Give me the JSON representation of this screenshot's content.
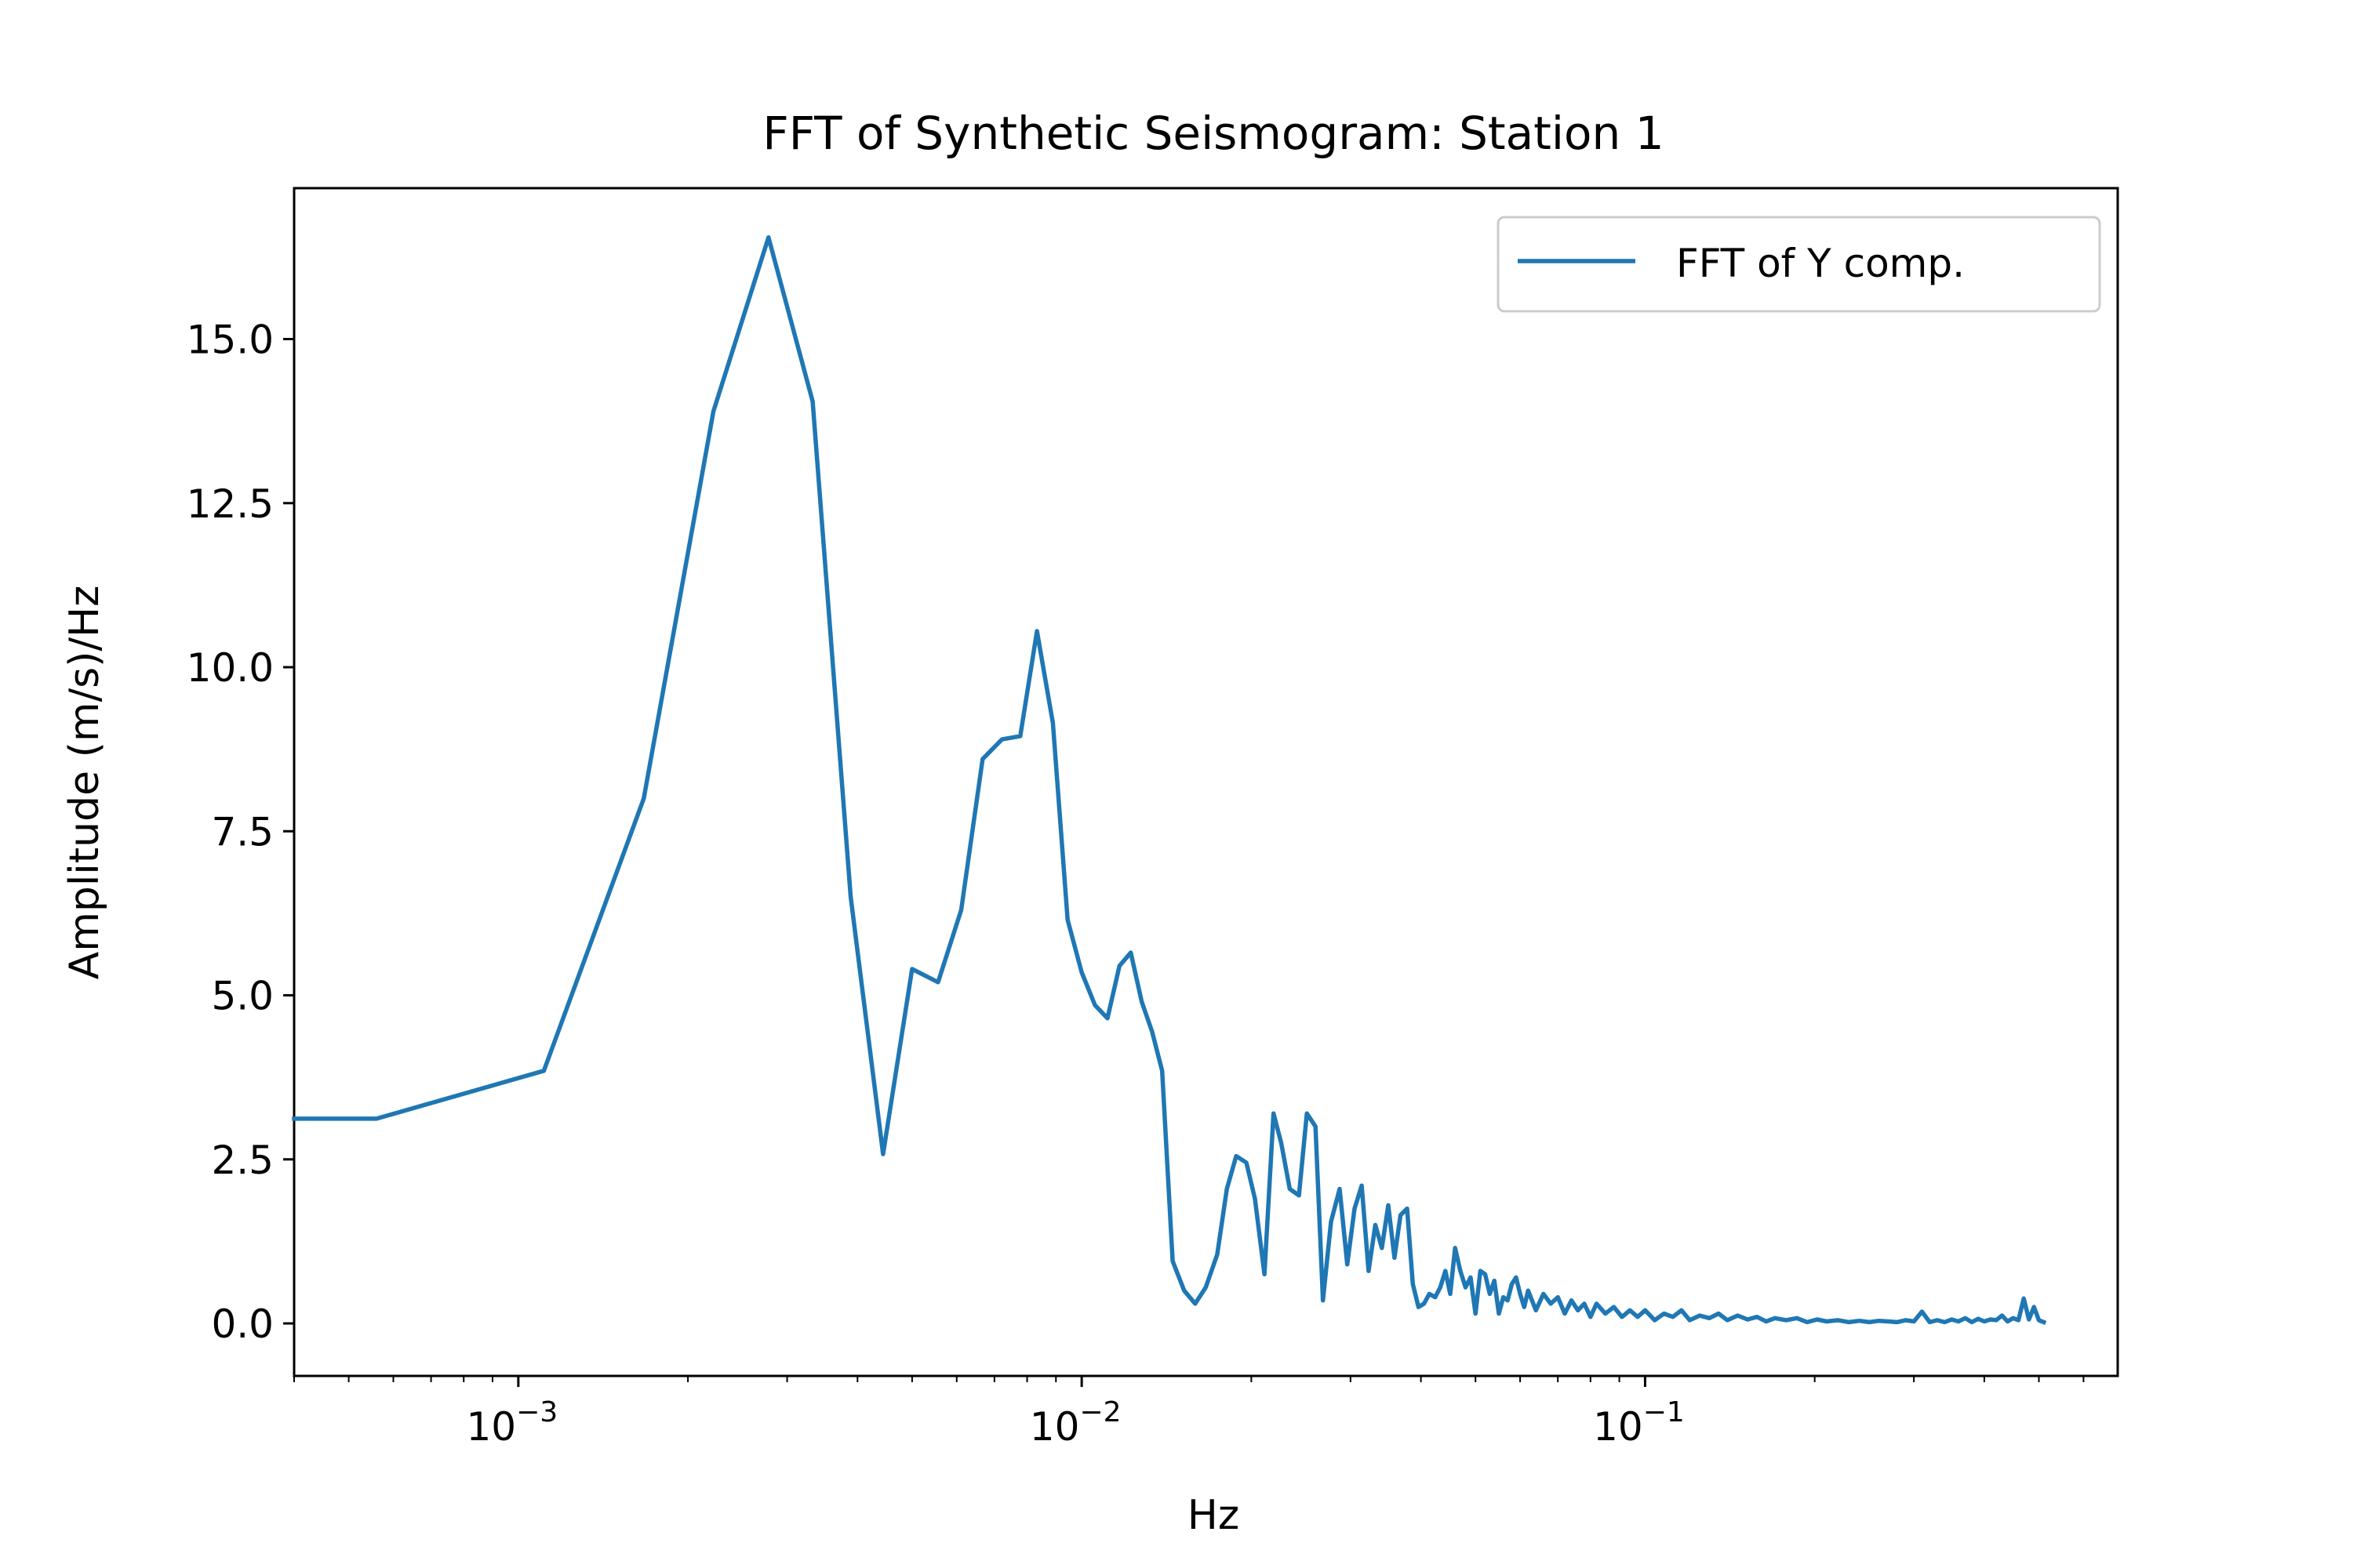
{
  "chart_data": {
    "type": "line",
    "title": "FFT of Synthetic Seismogram: Station 1",
    "xlabel": "Hz",
    "ylabel": "Amplitude (m/s)/Hz",
    "x_scale": "log",
    "xlim": [
      0.0004,
      0.69
    ],
    "ylim": [
      -0.8,
      17.3
    ],
    "x_major_ticks": [
      {
        "value": 0.001,
        "base": "10",
        "exponent": "−3"
      },
      {
        "value": 0.01,
        "base": "10",
        "exponent": "−2"
      },
      {
        "value": 0.1,
        "base": "10",
        "exponent": "−1"
      }
    ],
    "y_ticks": [
      {
        "value": 0.0,
        "label": "0.0"
      },
      {
        "value": 2.5,
        "label": "2.5"
      },
      {
        "value": 5.0,
        "label": "5.0"
      },
      {
        "value": 7.5,
        "label": "7.5"
      },
      {
        "value": 10.0,
        "label": "10.0"
      },
      {
        "value": 12.5,
        "label": "12.5"
      },
      {
        "value": 15.0,
        "label": "15.0"
      }
    ],
    "grid": false,
    "legend": {
      "placement": "upper right",
      "entries": [
        "FFT of Y comp."
      ]
    },
    "series": [
      {
        "name": "FFT of Y comp.",
        "color": "#1f77b4",
        "x": [
          0.0004,
          0.00056,
          0.00111,
          0.00167,
          0.00222,
          0.00278,
          0.00333,
          0.00389,
          0.00444,
          0.005,
          0.00556,
          0.00611,
          0.00667,
          0.00722,
          0.00778,
          0.00833,
          0.00889,
          0.00944,
          0.01,
          0.01056,
          0.01111,
          0.01167,
          0.01222,
          0.01278,
          0.01333,
          0.01389,
          0.0145,
          0.0152,
          0.0159,
          0.0166,
          0.0174,
          0.0181,
          0.0188,
          0.0196,
          0.0203,
          0.0211,
          0.0219,
          0.0226,
          0.0234,
          0.0243,
          0.0251,
          0.026,
          0.0268,
          0.0277,
          0.0287,
          0.0296,
          0.0305,
          0.0314,
          0.0323,
          0.0332,
          0.0341,
          0.035,
          0.0359,
          0.0368,
          0.0378,
          0.0387,
          0.0396,
          0.0405,
          0.0414,
          0.0424,
          0.0433,
          0.0442,
          0.0451,
          0.046,
          0.047,
          0.048,
          0.049,
          0.05,
          0.051,
          0.052,
          0.053,
          0.054,
          0.055,
          0.056,
          0.057,
          0.058,
          0.059,
          0.06,
          0.061,
          0.062,
          0.064,
          0.066,
          0.068,
          0.07,
          0.072,
          0.074,
          0.076,
          0.078,
          0.08,
          0.082,
          0.085,
          0.088,
          0.091,
          0.094,
          0.097,
          0.1,
          0.104,
          0.108,
          0.112,
          0.116,
          0.12,
          0.125,
          0.13,
          0.135,
          0.14,
          0.146,
          0.152,
          0.158,
          0.164,
          0.17,
          0.178,
          0.186,
          0.194,
          0.202,
          0.21,
          0.22,
          0.23,
          0.24,
          0.25,
          0.26,
          0.27,
          0.28,
          0.29,
          0.3,
          0.31,
          0.32,
          0.33,
          0.34,
          0.35,
          0.36,
          0.37,
          0.38,
          0.39,
          0.4,
          0.41,
          0.42,
          0.43,
          0.44,
          0.45,
          0.46,
          0.47,
          0.48,
          0.49,
          0.5,
          0.51
        ],
        "y": [
          3.12,
          3.12,
          3.85,
          8.0,
          13.9,
          16.55,
          14.05,
          6.5,
          2.58,
          5.4,
          5.2,
          6.3,
          8.6,
          8.9,
          8.95,
          10.55,
          9.15,
          6.15,
          5.35,
          4.85,
          4.65,
          5.45,
          5.65,
          4.9,
          4.45,
          3.85,
          0.95,
          0.5,
          0.3,
          0.55,
          1.05,
          2.05,
          2.55,
          2.45,
          1.9,
          0.75,
          3.2,
          2.75,
          2.05,
          1.95,
          3.2,
          3.0,
          0.35,
          1.55,
          2.05,
          0.9,
          1.75,
          2.1,
          0.8,
          1.5,
          1.15,
          1.8,
          1.0,
          1.65,
          1.75,
          0.6,
          0.25,
          0.3,
          0.45,
          0.4,
          0.55,
          0.8,
          0.45,
          1.15,
          0.8,
          0.55,
          0.7,
          0.15,
          0.8,
          0.75,
          0.45,
          0.65,
          0.15,
          0.4,
          0.35,
          0.6,
          0.7,
          0.45,
          0.25,
          0.5,
          0.2,
          0.45,
          0.3,
          0.4,
          0.15,
          0.35,
          0.2,
          0.3,
          0.1,
          0.3,
          0.15,
          0.25,
          0.1,
          0.2,
          0.1,
          0.2,
          0.05,
          0.15,
          0.1,
          0.2,
          0.05,
          0.12,
          0.08,
          0.15,
          0.05,
          0.12,
          0.06,
          0.1,
          0.03,
          0.08,
          0.05,
          0.08,
          0.02,
          0.06,
          0.03,
          0.05,
          0.02,
          0.04,
          0.02,
          0.04,
          0.03,
          0.02,
          0.05,
          0.03,
          0.18,
          0.02,
          0.05,
          0.02,
          0.06,
          0.03,
          0.08,
          0.02,
          0.07,
          0.03,
          0.06,
          0.05,
          0.12,
          0.03,
          0.08,
          0.05,
          0.38,
          0.06,
          0.25,
          0.05,
          0.02
        ]
      }
    ]
  }
}
